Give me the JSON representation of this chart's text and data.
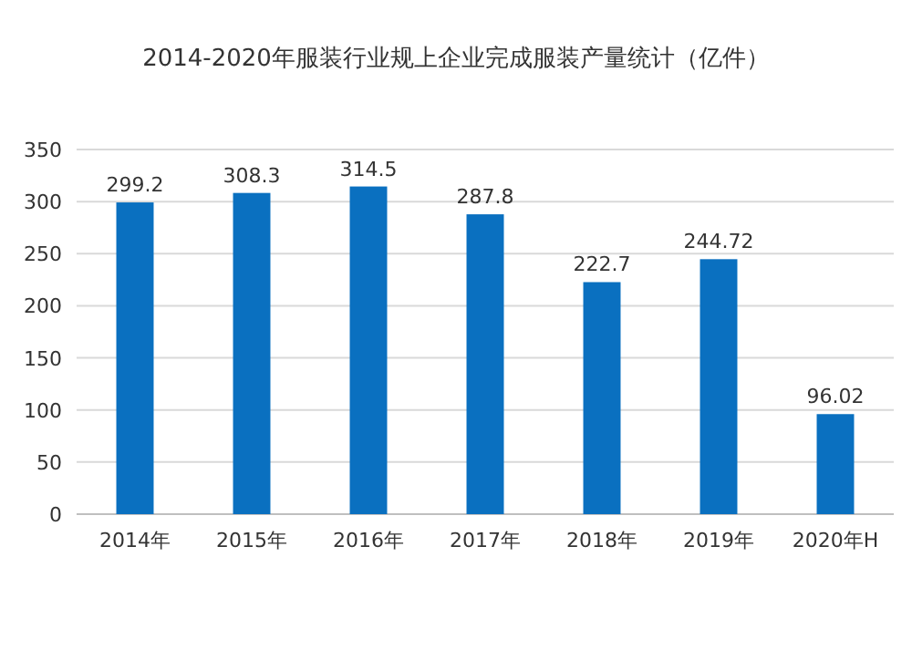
{
  "chart_data": {
    "type": "bar",
    "title": "2014-2020年服装行业规上企业完成服装产量统计（亿件）",
    "categories": [
      "2014年",
      "2015年",
      "2016年",
      "2017年",
      "2018年",
      "2019年",
      "2020年H"
    ],
    "values": [
      299.2,
      308.3,
      314.5,
      287.8,
      222.7,
      244.72,
      96.02
    ],
    "color": "#0a70c0",
    "ylim": [
      0,
      350
    ],
    "yticks": [
      0,
      50,
      100,
      150,
      200,
      250,
      300,
      350
    ],
    "grid": "y",
    "data_labels": true
  }
}
